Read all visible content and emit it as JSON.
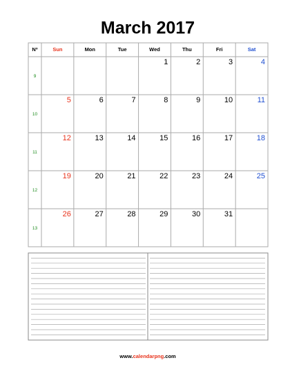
{
  "title": "March 2017",
  "header": [
    "Nº",
    "Sun",
    "Mon",
    "Tue",
    "Wed",
    "Thu",
    "Fri",
    "Sat"
  ],
  "weeks": [
    {
      "week": 9,
      "days": [
        null,
        null,
        null,
        1,
        2,
        3,
        4
      ]
    },
    {
      "week": 10,
      "days": [
        5,
        6,
        7,
        8,
        9,
        10,
        11
      ]
    },
    {
      "week": 11,
      "days": [
        12,
        13,
        14,
        15,
        16,
        17,
        18
      ]
    },
    {
      "week": 12,
      "days": [
        19,
        20,
        21,
        22,
        23,
        24,
        25
      ]
    },
    {
      "week": 13,
      "days": [
        26,
        27,
        28,
        29,
        30,
        31,
        null
      ]
    }
  ],
  "footer": [
    "www.",
    "calendarpng",
    ".com"
  ]
}
